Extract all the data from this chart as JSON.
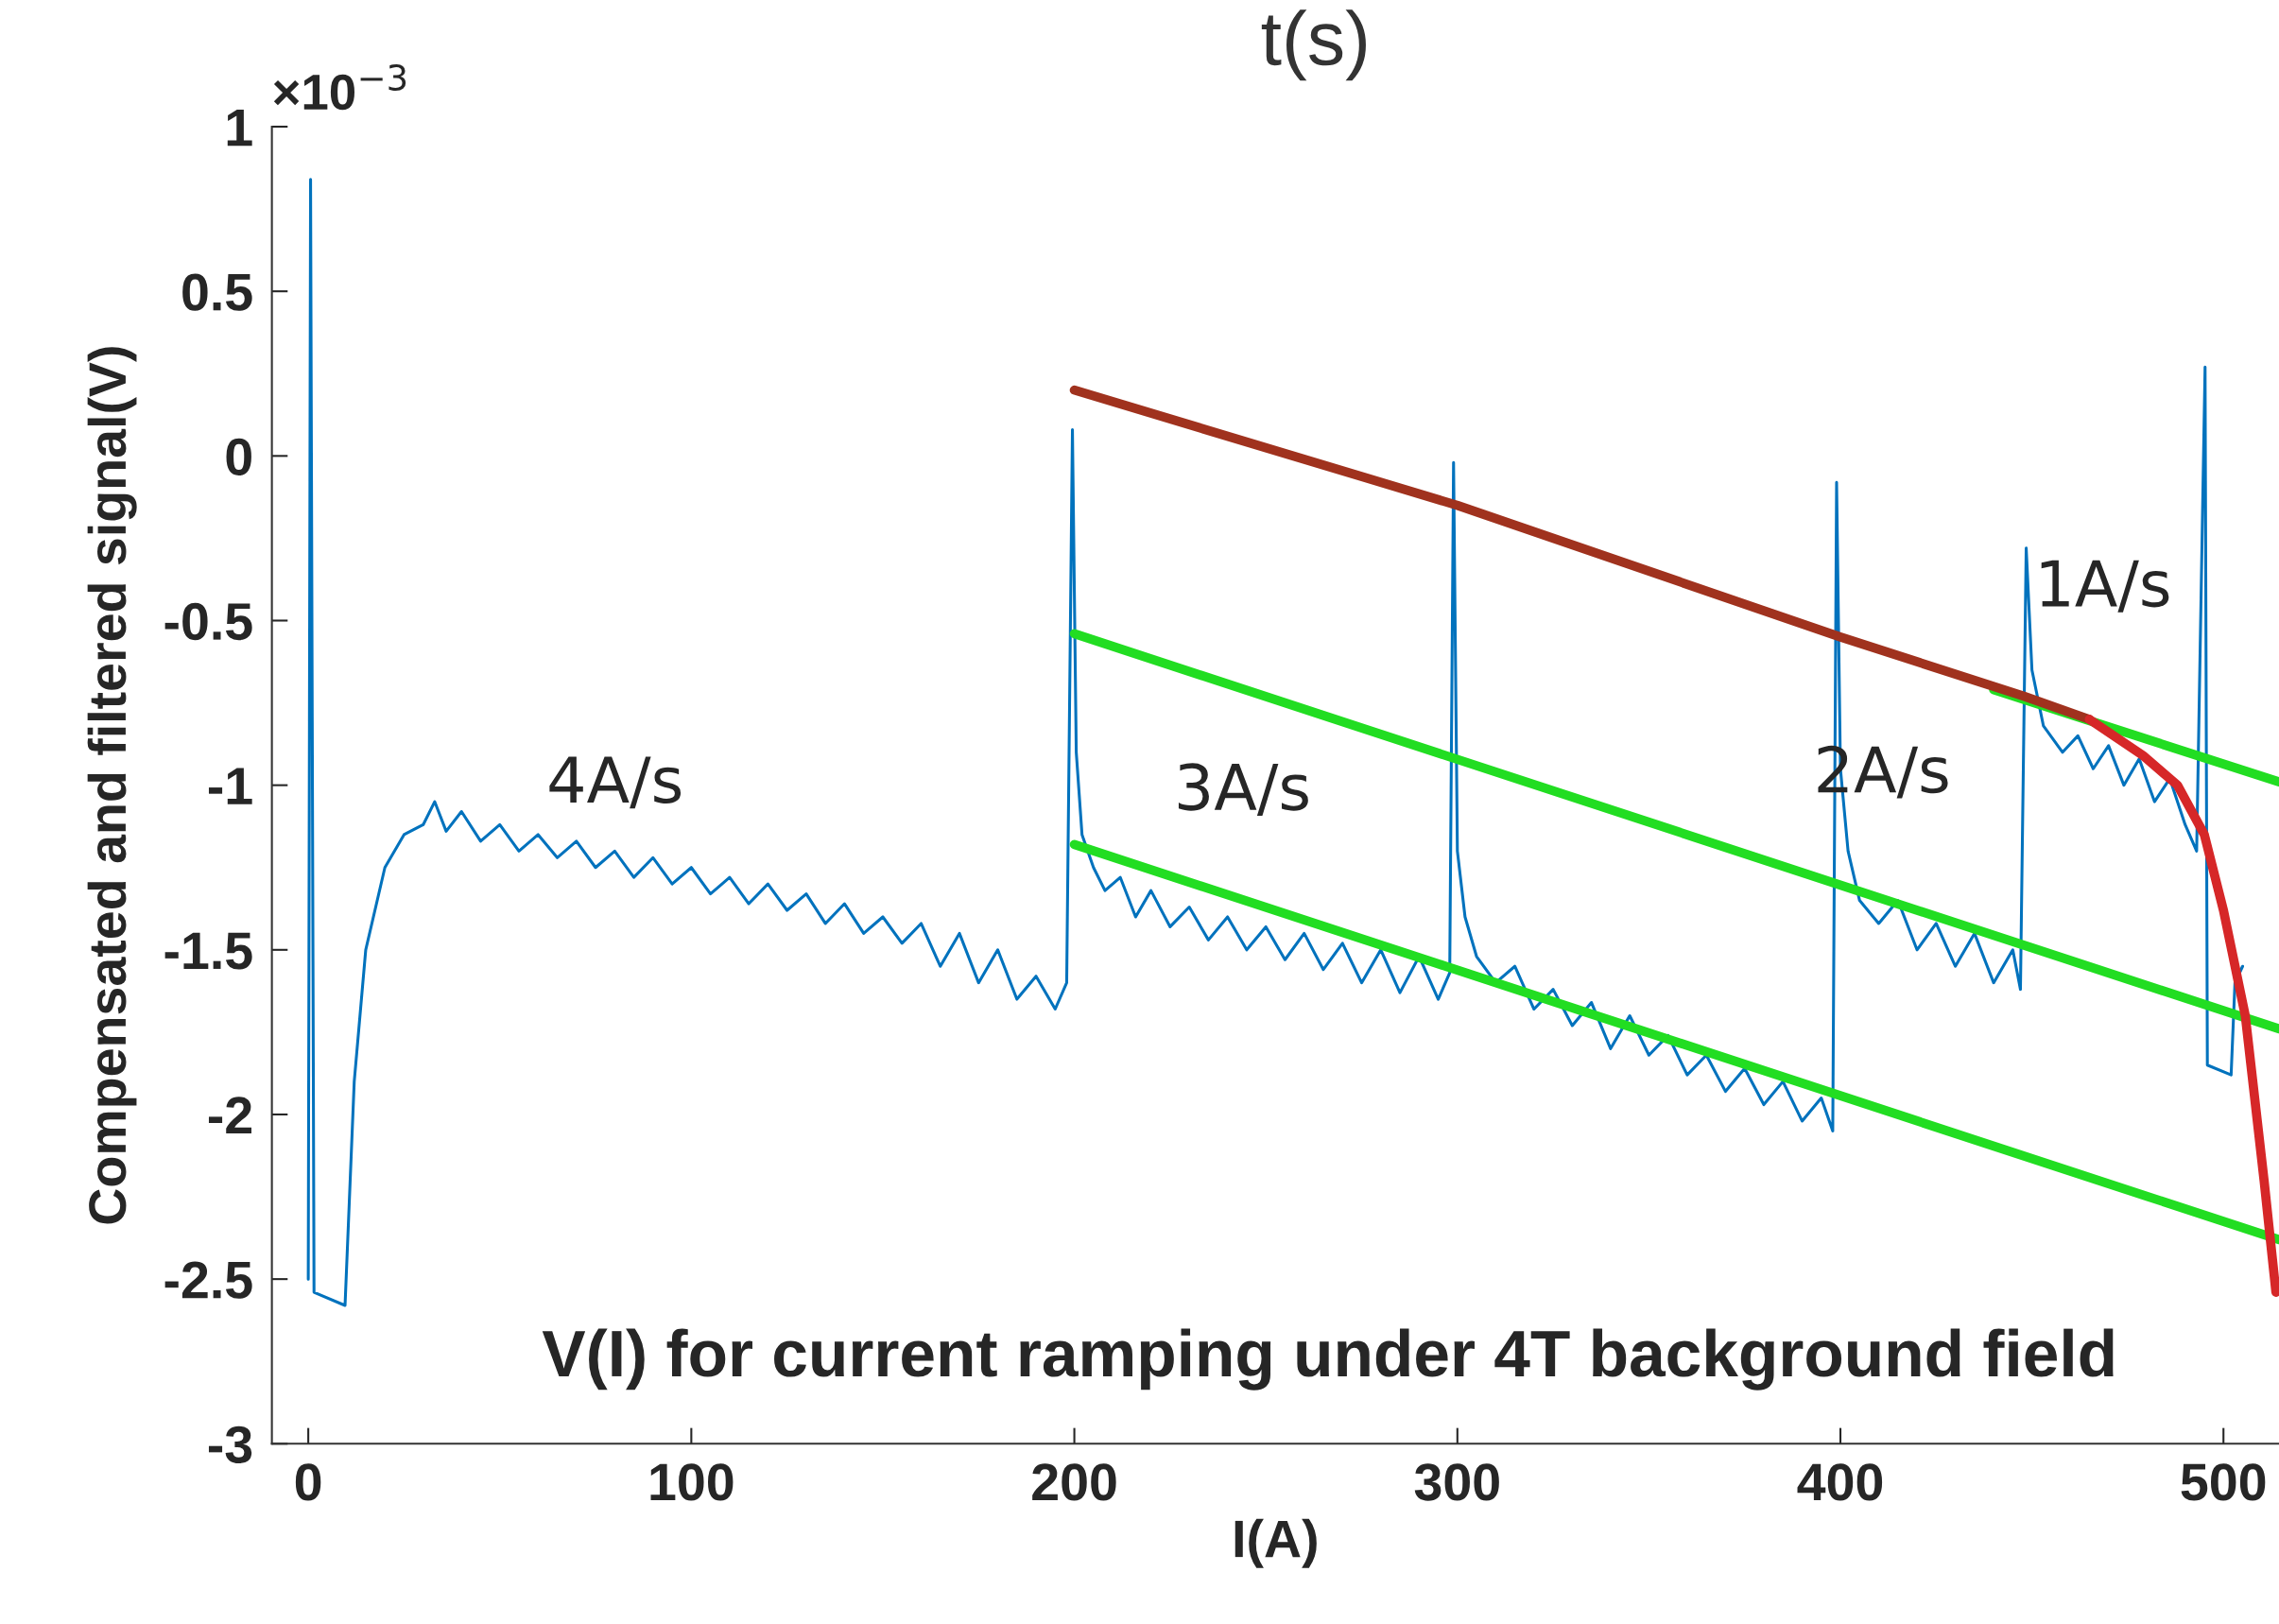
{
  "chart_data": {
    "type": "line",
    "title": "V(I) for current ramping under 4T background field",
    "xlabel": "I(A)",
    "ylabel": "Compensated and filtered signal(V)",
    "x2label": "t(s)",
    "annotations": [
      "×10$^{−3}$",
      "4A/s",
      "3A/s",
      "2A/s",
      "1A/s"
    ],
    "xlim": [
      -9.5,
      514.5
    ],
    "xticks": [
      0,
      100,
      200,
      300,
      400,
      500
    ],
    "ylim": [
      -3,
      1
    ],
    "yticks": [
      1,
      0.5,
      0,
      -0.5,
      -1,
      -1.5,
      -2,
      -2.5,
      -3
    ],
    "grid": false,
    "legend": false,
    "series": [
      {
        "color": "#0072bd",
        "x": [
          0,
          0.6,
          1.5,
          9.6,
          12,
          15,
          20,
          25,
          30,
          33,
          36,
          40,
          45,
          50,
          55,
          60,
          65,
          70,
          75,
          80,
          85,
          90,
          95,
          100,
          105,
          110,
          115,
          120,
          125,
          130,
          135,
          140,
          145,
          150,
          155,
          160,
          165,
          170,
          175,
          180,
          185,
          190,
          195,
          198,
          199.5,
          200.5,
          202,
          205,
          208,
          212,
          216,
          220,
          225,
          230,
          235,
          240,
          245,
          250,
          255,
          260,
          265,
          270,
          275,
          280,
          285,
          290,
          295,
          298,
          299,
          300,
          302,
          305,
          310,
          315,
          320,
          325,
          330,
          335,
          340,
          345,
          350,
          355,
          360,
          365,
          370,
          375,
          380,
          385,
          390,
          395,
          398,
          399,
          400,
          402,
          405,
          410,
          415,
          420,
          425,
          430,
          435,
          440,
          445,
          447,
          448.5,
          450,
          453,
          458,
          462,
          466,
          470,
          474,
          478,
          482,
          486,
          490,
          493,
          495.2,
          495.8,
          502,
          503,
          505
        ],
        "values": [
          -2.5,
          0.84,
          -2.54,
          -2.58,
          -1.9,
          -1.5,
          -1.25,
          -1.15,
          -1.12,
          -1.05,
          -1.14,
          -1.08,
          -1.17,
          -1.12,
          -1.2,
          -1.15,
          -1.22,
          -1.17,
          -1.25,
          -1.2,
          -1.28,
          -1.22,
          -1.3,
          -1.25,
          -1.33,
          -1.28,
          -1.36,
          -1.3,
          -1.38,
          -1.33,
          -1.42,
          -1.36,
          -1.45,
          -1.4,
          -1.48,
          -1.42,
          -1.55,
          -1.45,
          -1.6,
          -1.5,
          -1.65,
          -1.58,
          -1.68,
          -1.6,
          0.08,
          -0.9,
          -1.15,
          -1.25,
          -1.32,
          -1.28,
          -1.4,
          -1.32,
          -1.43,
          -1.37,
          -1.47,
          -1.4,
          -1.5,
          -1.43,
          -1.53,
          -1.45,
          -1.56,
          -1.48,
          -1.6,
          -1.5,
          -1.63,
          -1.52,
          -1.65,
          -1.57,
          -0.02,
          -1.2,
          -1.4,
          -1.52,
          -1.6,
          -1.55,
          -1.68,
          -1.62,
          -1.73,
          -1.66,
          -1.8,
          -1.7,
          -1.82,
          -1.76,
          -1.88,
          -1.82,
          -1.93,
          -1.86,
          -1.97,
          -1.9,
          -2.02,
          -1.95,
          -2.05,
          -0.08,
          -0.95,
          -1.2,
          -1.35,
          -1.42,
          -1.35,
          -1.5,
          -1.42,
          -1.55,
          -1.45,
          -1.6,
          -1.5,
          -1.62,
          -0.28,
          -0.65,
          -0.82,
          -0.9,
          -0.85,
          -0.95,
          -0.88,
          -1.0,
          -0.92,
          -1.05,
          -0.98,
          -1.12,
          -1.2,
          0.27,
          -1.85,
          -1.88,
          -1.6,
          -1.55
        ]
      },
      {
        "color": "#22dd22",
        "x": [
          200,
          514.5
        ],
        "values": [
          -0.54,
          -1.74
        ]
      },
      {
        "color": "#22dd22",
        "x": [
          200,
          514.5
        ],
        "values": [
          -1.18,
          -2.38
        ]
      },
      {
        "color": "#22dd22",
        "x": [
          440,
          514.5
        ],
        "values": [
          -0.71,
          -0.99
        ]
      },
      {
        "color": "#a0321e",
        "x": [
          200,
          300,
          400,
          448,
          465
        ],
        "values": [
          0.2,
          -0.15,
          -0.55,
          -0.73,
          -0.8
        ]
      },
      {
        "color": "#d62728",
        "x": [
          465,
          479,
          488,
          495,
          500,
          505.7,
          510.6,
          513.7
        ],
        "values": [
          -0.8,
          -0.91,
          -1.0,
          -1.15,
          -1.38,
          -1.7,
          -2.2,
          -2.54
        ]
      }
    ]
  }
}
